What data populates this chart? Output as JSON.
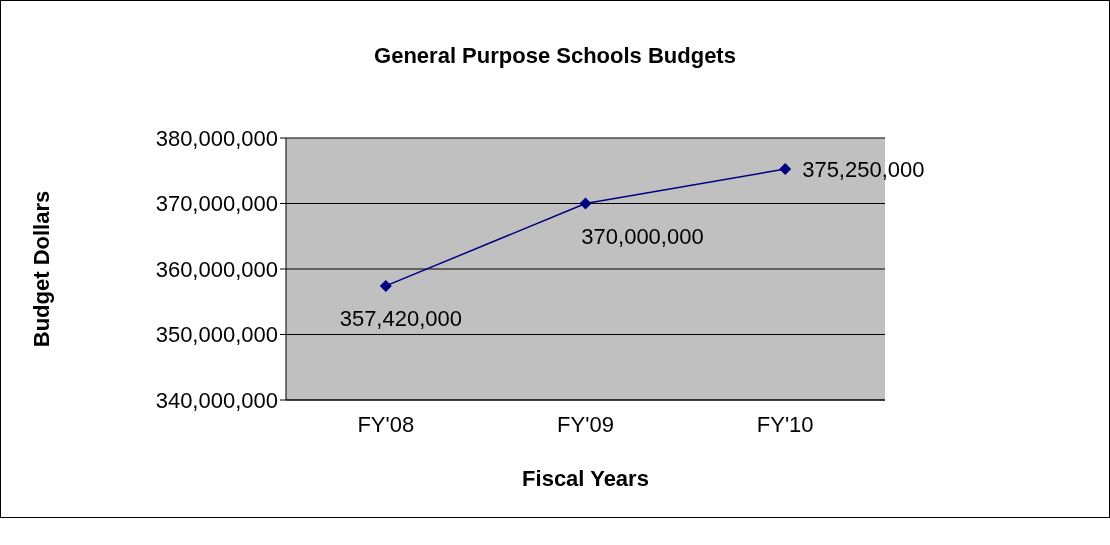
{
  "chart_data": {
    "type": "line",
    "title": "General Purpose Schools Budgets",
    "xlabel": "Fiscal Years",
    "ylabel": "Budget Dollars",
    "categories": [
      "FY'08",
      "FY'09",
      "FY'10"
    ],
    "series": [
      {
        "color": "#000080",
        "values": [
          357420000,
          370000000,
          375250000
        ],
        "value_labels": [
          "357,420,000",
          "370,000,000",
          "375,250,000"
        ]
      }
    ],
    "ylim": [
      340000000,
      380000000
    ],
    "yticks": [
      {
        "value": 340000000,
        "label": "340,000,000"
      },
      {
        "value": 350000000,
        "label": "350,000,000"
      },
      {
        "value": 360000000,
        "label": "360,000,000"
      },
      {
        "value": 370000000,
        "label": "370,000,000"
      },
      {
        "value": 380000000,
        "label": "380,000,000"
      }
    ],
    "grid": "y",
    "marker": "diamond",
    "line_style": "solid"
  }
}
